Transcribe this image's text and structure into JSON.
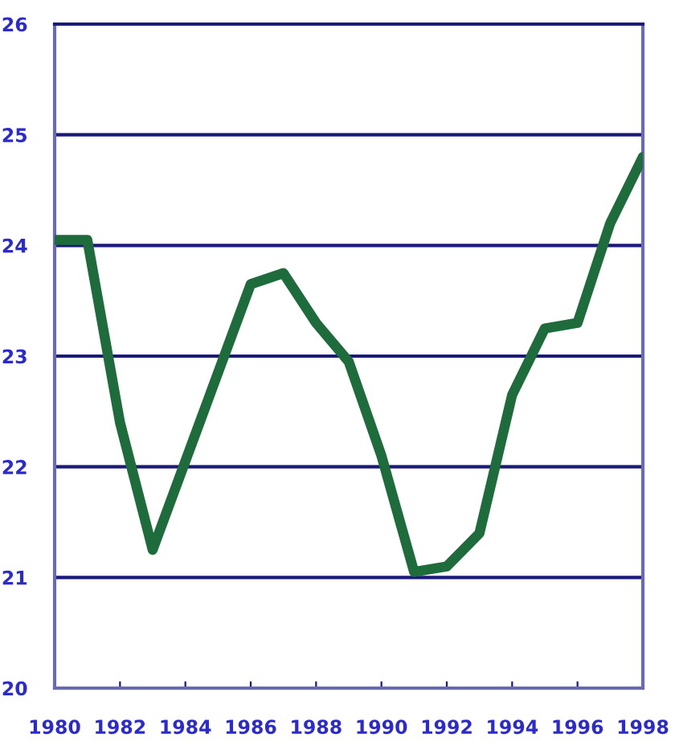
{
  "chart_data": {
    "type": "line",
    "x": [
      1980,
      1981,
      1982,
      1983,
      1984,
      1985,
      1986,
      1987,
      1988,
      1989,
      1990,
      1991,
      1992,
      1993,
      1994,
      1995,
      1996,
      1997,
      1998
    ],
    "series": [
      {
        "color": "#1e6b3c",
        "values": [
          24.05,
          24.05,
          22.4,
          21.25,
          22.05,
          22.85,
          23.65,
          23.75,
          23.3,
          22.95,
          22.1,
          21.05,
          21.1,
          21.4,
          22.65,
          23.25,
          23.3,
          24.2,
          24.8
        ]
      }
    ],
    "xlim": [
      1980,
      1998
    ],
    "xticks": [
      1980,
      1982,
      1984,
      1986,
      1988,
      1990,
      1992,
      1994,
      1996,
      1998
    ],
    "ylim": [
      20,
      26
    ],
    "yticks": [
      20,
      21,
      22,
      23,
      24,
      25,
      26
    ],
    "grid": "y",
    "marker": "none",
    "line_style": "solid"
  }
}
